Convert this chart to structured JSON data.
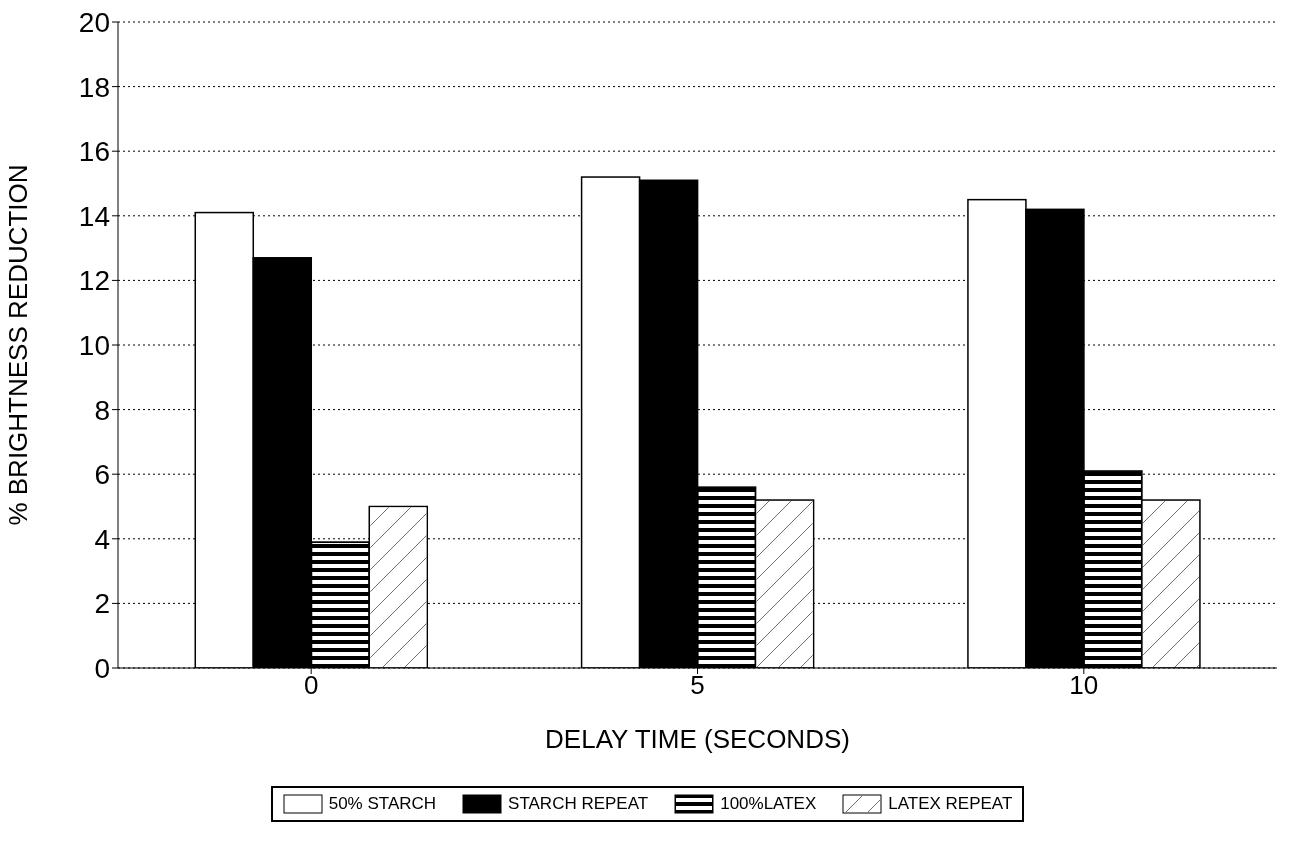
{
  "chart_data": {
    "type": "bar",
    "xlabel": "DELAY TIME (SECONDS)",
    "ylabel": "% BRIGHTNESS REDUCTION",
    "categories": [
      "0",
      "5",
      "10"
    ],
    "series": [
      {
        "name": "50% STARCH",
        "color": "#ffffff",
        "values": [
          14.1,
          15.2,
          14.5
        ]
      },
      {
        "name": "STARCH REPEAT",
        "color": "#000000",
        "values": [
          12.7,
          15.1,
          14.2
        ]
      },
      {
        "name": "100%LATEX",
        "color": "#000000",
        "values": [
          3.9,
          5.6,
          6.1
        ]
      },
      {
        "name": "LATEX REPEAT",
        "color": "#ffffff",
        "values": [
          5.0,
          5.2,
          5.2
        ]
      }
    ],
    "ylim": [
      0,
      20
    ],
    "yticks": [
      0,
      2,
      4,
      6,
      8,
      10,
      12,
      14,
      16,
      18,
      20
    ],
    "grid": "y",
    "legend": "bottom"
  }
}
